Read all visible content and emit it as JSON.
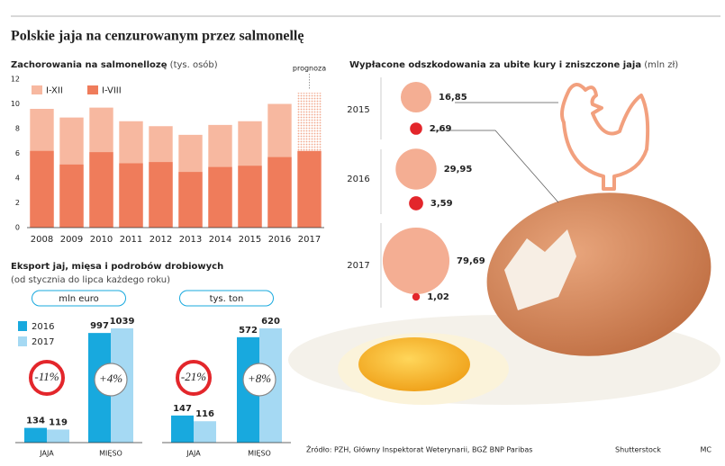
{
  "header": {
    "title": "Polskie jaja na cenzurowanym przez salmonellę"
  },
  "chart_data": [
    {
      "type": "bar",
      "barmode": "overlay",
      "title": "Zachorowania na salmonellozę",
      "subtitle": "(tys. osób)",
      "categories": [
        "2008",
        "2009",
        "2010",
        "2011",
        "2012",
        "2013",
        "2014",
        "2015",
        "2016",
        "2017"
      ],
      "series": [
        {
          "name": "I-XII",
          "color": "#f7b8a0",
          "values": [
            9.6,
            8.9,
            9.7,
            8.6,
            8.2,
            7.5,
            8.3,
            8.6,
            10.0,
            10.9
          ],
          "hatched": [
            false,
            false,
            false,
            false,
            false,
            false,
            false,
            false,
            false,
            true
          ]
        },
        {
          "name": "I-VIII",
          "color": "#ef7c5b",
          "values": [
            6.2,
            5.1,
            6.1,
            5.2,
            5.3,
            4.5,
            4.9,
            5.0,
            5.7,
            6.2
          ]
        }
      ],
      "note": "prognoza",
      "ylim": [
        0,
        12
      ],
      "yticks": [
        0,
        2,
        4,
        6,
        8,
        10,
        12
      ],
      "grid": false
    },
    {
      "type": "bubble",
      "title": "Wypłacone odszkodowania za ubite kury i zniszczone jaja",
      "subtitle": "(mln zł)",
      "categories": [
        "2015",
        "2016",
        "2017"
      ],
      "series": [
        {
          "color": "#f4ae93",
          "values": [
            16.85,
            29.95,
            79.69
          ],
          "value_labels": [
            "16,85",
            "29,95",
            "79,69"
          ]
        },
        {
          "color": "#e3262b",
          "values": [
            2.69,
            3.59,
            1.02
          ],
          "value_labels": [
            "2,69",
            "3,59",
            "1,02"
          ]
        }
      ]
    },
    {
      "type": "grouped-bar",
      "title": "Eksport jaj, mięsa i podrobów drobiowych",
      "subtitle": "(od stycznia do lipca każdego roku)",
      "unit": "mln euro",
      "categories": [
        "JAJA",
        "MIĘSO"
      ],
      "legend": true,
      "series": [
        {
          "name": "2016",
          "color": "#18a9de",
          "values": [
            134,
            997
          ]
        },
        {
          "name": "2017",
          "color": "#a5d9f3",
          "values": [
            119,
            1039
          ]
        }
      ],
      "change_labels": [
        "-11%",
        "+4%"
      ]
    },
    {
      "type": "grouped-bar",
      "unit": "tys. ton",
      "categories": [
        "JAJA",
        "MIĘSO"
      ],
      "legend": false,
      "series": [
        {
          "color": "#18a9de",
          "values": [
            147,
            572
          ]
        },
        {
          "color": "#a5d9f3",
          "values": [
            116,
            620
          ]
        }
      ],
      "change_labels": [
        "-21%",
        "+8%"
      ]
    }
  ],
  "footer": {
    "source": "Źródło: PZH, Główny Inspektorat Weterynarii, BGŻ BNP Paribas",
    "photo": "Shutterstock",
    "author": "MC"
  }
}
